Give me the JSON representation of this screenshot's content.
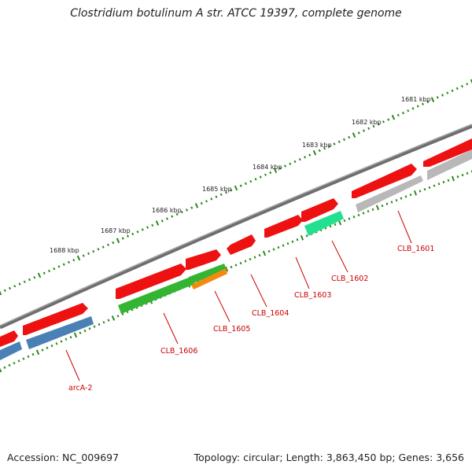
{
  "title": "Clostridium botulinum A str. ATCC 19397, complete genome",
  "footer": {
    "accession": "Accession: NC_009697",
    "summary": "Topology: circular; Length: 3,863,450 bp; Genes: 3,656"
  },
  "kbp_labels": [
    "1681 kbp",
    "1682 kbp",
    "1683 kbp",
    "1684 kbp",
    "1685 kbp",
    "1686 kbp",
    "1687 kbp",
    "1688 kbp"
  ],
  "gene_labels": [
    "CLB_1601",
    "CLB_1602",
    "CLB_1603",
    "CLB_1604",
    "CLB_1605",
    "CLB_1606",
    "arcA-2"
  ],
  "colors": {
    "backbone": "#808080",
    "cds": "#ee1111",
    "gene_blue": "#4a80b5",
    "gene_green": "#33b533",
    "gene_orange": "#f28a10",
    "gene_teal": "#22e090",
    "gene_grey": "#b8b8b8",
    "tick": "#2a8a1a",
    "label_red": "#cc0000"
  }
}
